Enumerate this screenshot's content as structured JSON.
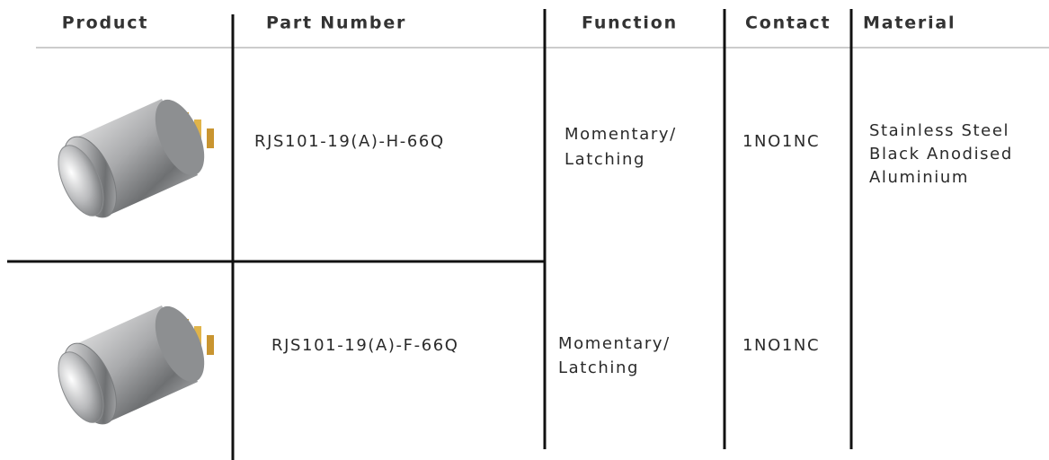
{
  "table": {
    "headers": [
      "Product",
      "Part Number",
      "Function",
      "Contact",
      "Material"
    ],
    "rows": [
      {
        "part_number": "RJS101-19(A)-H-66Q",
        "function": [
          "Momentary/",
          "Latching"
        ],
        "contact": "1NO1NC"
      },
      {
        "part_number": "RJS101-19(A)-F-66Q",
        "function": [
          "Momentary/",
          "Latching"
        ],
        "contact": "1NO1NC"
      }
    ],
    "material": [
      "Stainless Steel",
      "Black Anodised",
      "Aluminium"
    ]
  }
}
